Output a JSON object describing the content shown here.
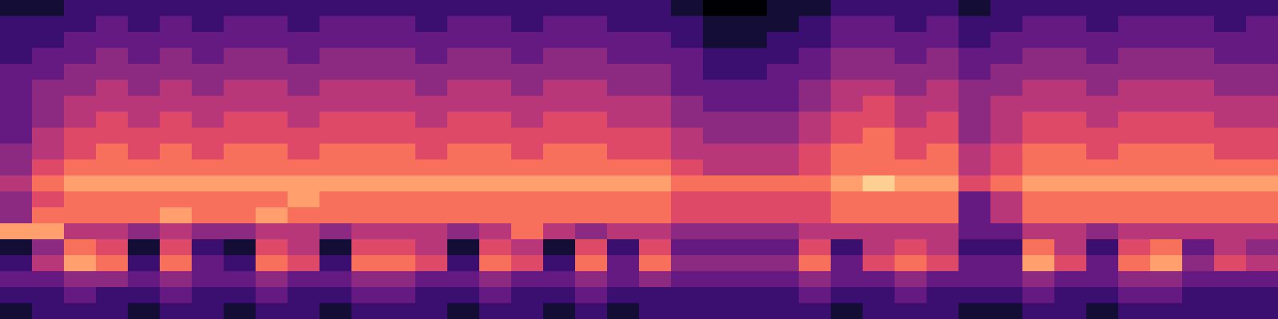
{
  "chart_data": {
    "type": "heatmap",
    "tick_labels": false,
    "zlim": [
      0,
      10
    ],
    "cells": [
      [
        1,
        1,
        2,
        2,
        2,
        2,
        2,
        2,
        2,
        2,
        2,
        2,
        2,
        2,
        2,
        2,
        2,
        2,
        2,
        2,
        2,
        1,
        0,
        0,
        1,
        1,
        2,
        2,
        2,
        2,
        1,
        2,
        2,
        2,
        2,
        2,
        2,
        2,
        2,
        2
      ],
      [
        2,
        2,
        2,
        3,
        2,
        3,
        2,
        3,
        3,
        2,
        3,
        3,
        3,
        2,
        3,
        3,
        2,
        3,
        3,
        2,
        2,
        2,
        1,
        1,
        1,
        2,
        3,
        3,
        2,
        3,
        2,
        2,
        3,
        3,
        2,
        3,
        3,
        3,
        2,
        3
      ],
      [
        2,
        2,
        3,
        3,
        3,
        3,
        3,
        3,
        3,
        3,
        3,
        3,
        3,
        3,
        3,
        3,
        3,
        3,
        3,
        3,
        3,
        2,
        1,
        1,
        2,
        2,
        3,
        3,
        3,
        3,
        2,
        3,
        3,
        3,
        3,
        3,
        3,
        3,
        3,
        3
      ],
      [
        2,
        3,
        3,
        4,
        3,
        4,
        3,
        4,
        4,
        3,
        4,
        4,
        4,
        3,
        4,
        4,
        3,
        4,
        4,
        3,
        3,
        3,
        2,
        2,
        2,
        3,
        4,
        4,
        3,
        4,
        3,
        3,
        4,
        4,
        3,
        4,
        4,
        4,
        3,
        3
      ],
      [
        3,
        3,
        4,
        4,
        4,
        4,
        4,
        4,
        4,
        4,
        4,
        4,
        4,
        4,
        4,
        4,
        4,
        4,
        4,
        4,
        4,
        3,
        2,
        2,
        3,
        3,
        4,
        4,
        4,
        4,
        3,
        4,
        4,
        4,
        4,
        4,
        4,
        4,
        4,
        4
      ],
      [
        3,
        4,
        4,
        5,
        4,
        5,
        4,
        5,
        5,
        4,
        5,
        5,
        5,
        4,
        5,
        5,
        4,
        5,
        5,
        4,
        4,
        3,
        3,
        3,
        3,
        4,
        5,
        5,
        4,
        5,
        4,
        4,
        5,
        5,
        4,
        5,
        5,
        5,
        4,
        4
      ],
      [
        3,
        4,
        5,
        5,
        5,
        5,
        5,
        5,
        5,
        5,
        5,
        5,
        5,
        5,
        5,
        5,
        5,
        5,
        5,
        5,
        5,
        4,
        3,
        3,
        3,
        4,
        5,
        6,
        5,
        5,
        4,
        5,
        5,
        5,
        5,
        5,
        5,
        5,
        5,
        5
      ],
      [
        3,
        4,
        5,
        6,
        5,
        6,
        5,
        6,
        6,
        5,
        6,
        6,
        6,
        5,
        6,
        6,
        5,
        6,
        6,
        5,
        5,
        4,
        4,
        4,
        4,
        5,
        6,
        6,
        5,
        6,
        4,
        5,
        6,
        6,
        5,
        6,
        6,
        6,
        5,
        5
      ],
      [
        3,
        5,
        6,
        6,
        6,
        6,
        6,
        6,
        6,
        6,
        6,
        6,
        6,
        6,
        6,
        6,
        6,
        6,
        6,
        6,
        6,
        5,
        4,
        4,
        4,
        5,
        6,
        7,
        6,
        6,
        4,
        5,
        6,
        6,
        6,
        6,
        6,
        6,
        6,
        6
      ],
      [
        4,
        5,
        6,
        7,
        6,
        7,
        6,
        7,
        7,
        6,
        7,
        7,
        7,
        6,
        7,
        7,
        6,
        7,
        7,
        6,
        6,
        5,
        5,
        5,
        5,
        6,
        7,
        7,
        6,
        7,
        5,
        6,
        7,
        7,
        6,
        7,
        7,
        7,
        6,
        6
      ],
      [
        4,
        6,
        7,
        7,
        7,
        7,
        7,
        7,
        7,
        7,
        7,
        7,
        7,
        7,
        7,
        7,
        7,
        7,
        7,
        7,
        7,
        6,
        5,
        5,
        5,
        6,
        7,
        7,
        7,
        7,
        5,
        6,
        7,
        7,
        7,
        7,
        7,
        7,
        7,
        7
      ],
      [
        5,
        7,
        8,
        8,
        8,
        8,
        8,
        8,
        8,
        8,
        8,
        8,
        8,
        8,
        8,
        8,
        8,
        8,
        8,
        8,
        8,
        7,
        7,
        7,
        7,
        7,
        8,
        9,
        8,
        8,
        6,
        7,
        8,
        8,
        8,
        8,
        8,
        8,
        8,
        8
      ],
      [
        4,
        6,
        7,
        7,
        7,
        7,
        7,
        7,
        7,
        8,
        7,
        7,
        7,
        7,
        7,
        7,
        7,
        7,
        7,
        7,
        7,
        6,
        6,
        6,
        6,
        6,
        7,
        7,
        7,
        7,
        3,
        5,
        7,
        7,
        7,
        7,
        7,
        7,
        7,
        7
      ],
      [
        4,
        7,
        7,
        7,
        7,
        8,
        7,
        7,
        8,
        7,
        7,
        7,
        7,
        7,
        7,
        7,
        7,
        7,
        7,
        7,
        7,
        6,
        6,
        6,
        6,
        6,
        7,
        7,
        7,
        7,
        3,
        5,
        7,
        7,
        7,
        7,
        7,
        7,
        7,
        7
      ],
      [
        8,
        8,
        5,
        5,
        4,
        5,
        4,
        4,
        5,
        5,
        4,
        5,
        5,
        5,
        4,
        5,
        7,
        5,
        4,
        5,
        5,
        4,
        4,
        4,
        4,
        5,
        5,
        5,
        5,
        5,
        3,
        3,
        5,
        5,
        4,
        5,
        5,
        5,
        5,
        5
      ],
      [
        1,
        4,
        7,
        6,
        1,
        6,
        2,
        1,
        6,
        5,
        1,
        6,
        6,
        5,
        1,
        6,
        5,
        1,
        6,
        2,
        6,
        3,
        3,
        3,
        3,
        6,
        2,
        5,
        6,
        5,
        2,
        2,
        7,
        5,
        2,
        6,
        7,
        3,
        5,
        4
      ],
      [
        2,
        5,
        8,
        7,
        2,
        7,
        3,
        2,
        7,
        6,
        2,
        7,
        7,
        6,
        2,
        7,
        6,
        2,
        7,
        3,
        7,
        4,
        4,
        4,
        4,
        7,
        3,
        6,
        7,
        6,
        3,
        3,
        8,
        6,
        3,
        7,
        8,
        4,
        6,
        5
      ],
      [
        3,
        3,
        4,
        4,
        3,
        4,
        3,
        3,
        4,
        3,
        3,
        4,
        4,
        3,
        3,
        4,
        3,
        3,
        4,
        3,
        4,
        3,
        3,
        3,
        3,
        4,
        3,
        3,
        4,
        3,
        3,
        3,
        4,
        3,
        3,
        4,
        4,
        3,
        3,
        3
      ],
      [
        2,
        2,
        3,
        2,
        2,
        3,
        2,
        2,
        3,
        2,
        2,
        3,
        3,
        2,
        2,
        3,
        2,
        2,
        3,
        2,
        2,
        2,
        2,
        2,
        2,
        3,
        2,
        2,
        3,
        2,
        2,
        2,
        3,
        2,
        2,
        3,
        3,
        2,
        2,
        2
      ],
      [
        1,
        2,
        2,
        2,
        1,
        2,
        2,
        1,
        2,
        2,
        1,
        2,
        2,
        2,
        1,
        2,
        2,
        1,
        2,
        1,
        2,
        2,
        2,
        2,
        2,
        2,
        1,
        2,
        2,
        2,
        1,
        1,
        2,
        2,
        1,
        2,
        2,
        2,
        2,
        2
      ]
    ]
  }
}
